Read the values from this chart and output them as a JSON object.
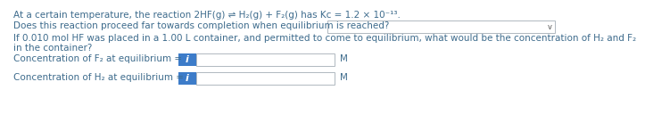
{
  "bg_color": "#ffffff",
  "text_color": "#3d6b8c",
  "text_color_dark": "#2e5980",
  "line1": "At a certain temperature, the reaction 2HF(g) ⇌ H₂(g) + F₂(g) has Kᴄ = 1.2 × 10⁻¹³.",
  "line2": "Does this reaction proceed far towards completion when equilibrium is reached?",
  "line3": "If 0.010 mol HF was placed in a 1.00 L container, and permitted to come to equilibrium, what would be the concentration of H₂ and F₂",
  "line4": "in the container?",
  "label_f2": "Concentration of F₂ at equilibrium =",
  "label_h2": "Concentration of H₂ at equilibrium =",
  "unit": "M",
  "dropdown_border": "#b0b8c0",
  "dropdown_arrow": "∨",
  "input_box_color": "#3d7cc9",
  "input_text_color": "#ffffff",
  "input_label": "i",
  "font_size": 7.5
}
